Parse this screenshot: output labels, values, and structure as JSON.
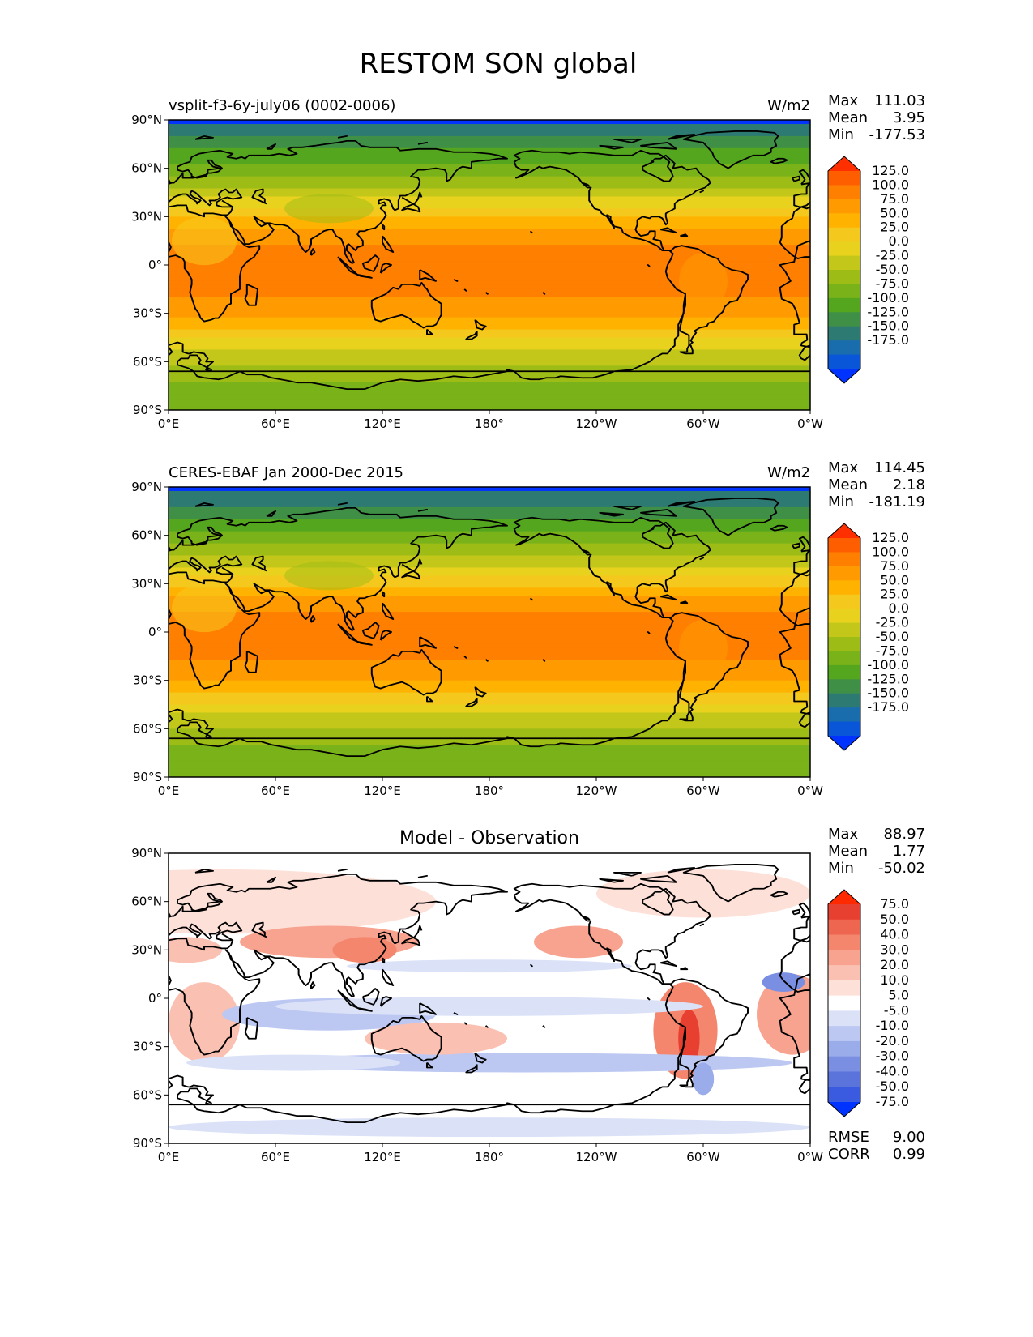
{
  "figure_title": "RESTOM SON global",
  "x_tick_labels": [
    "0°E",
    "60°E",
    "120°E",
    "180°",
    "120°W",
    "60°W",
    "0°W"
  ],
  "y_tick_labels": [
    "90°N",
    "60°N",
    "30°N",
    "0°",
    "30°S",
    "60°S",
    "90°S"
  ],
  "chart_data": [
    {
      "type": "heatmap",
      "title": "vsplit-f3-6y-july06 (0002-0006)",
      "units": "W/m2",
      "stats": {
        "max_label": "Max",
        "max": "111.03",
        "mean_label": "Mean",
        "mean": "3.95",
        "min_label": "Min",
        "min": "-177.53"
      },
      "colorbar_levels": [
        "125.0",
        "100.0",
        "75.0",
        "50.0",
        "25.0",
        "0.0",
        "-25.0",
        "-50.0",
        "-75.0",
        "-100.0",
        "-125.0",
        "-150.0",
        "-175.0"
      ],
      "zonal_profile": [
        [
          90,
          -180
        ],
        [
          85,
          -165
        ],
        [
          80,
          -150
        ],
        [
          75,
          -135
        ],
        [
          70,
          -120
        ],
        [
          65,
          -105
        ],
        [
          60,
          -90
        ],
        [
          55,
          -75
        ],
        [
          50,
          -55
        ],
        [
          45,
          -38
        ],
        [
          40,
          -20
        ],
        [
          35,
          0
        ],
        [
          30,
          20
        ],
        [
          25,
          40
        ],
        [
          20,
          55
        ],
        [
          15,
          70
        ],
        [
          10,
          80
        ],
        [
          5,
          85
        ],
        [
          0,
          85
        ],
        [
          -5,
          88
        ],
        [
          -10,
          90
        ],
        [
          -15,
          85
        ],
        [
          -20,
          75
        ],
        [
          -25,
          65
        ],
        [
          -30,
          55
        ],
        [
          -35,
          40
        ],
        [
          -40,
          20
        ],
        [
          -45,
          0
        ],
        [
          -50,
          -15
        ],
        [
          -55,
          -30
        ],
        [
          -60,
          -45
        ],
        [
          -65,
          -60
        ],
        [
          -70,
          -70
        ],
        [
          -75,
          -78
        ],
        [
          -80,
          -80
        ],
        [
          -85,
          -80
        ],
        [
          -90,
          -80
        ]
      ]
    },
    {
      "type": "heatmap",
      "title": "CERES-EBAF Jan 2000-Dec 2015",
      "units": "W/m2",
      "stats": {
        "max_label": "Max",
        "max": "114.45",
        "mean_label": "Mean",
        "mean": "2.18",
        "min_label": "Min",
        "min": "-181.19"
      },
      "colorbar_levels": [
        "125.0",
        "100.0",
        "75.0",
        "50.0",
        "25.0",
        "0.0",
        "-25.0",
        "-50.0",
        "-75.0",
        "-100.0",
        "-125.0",
        "-150.0",
        "-175.0"
      ],
      "zonal_profile": [
        [
          90,
          -182
        ],
        [
          85,
          -170
        ],
        [
          80,
          -155
        ],
        [
          75,
          -140
        ],
        [
          70,
          -125
        ],
        [
          65,
          -110
        ],
        [
          60,
          -92
        ],
        [
          55,
          -78
        ],
        [
          50,
          -58
        ],
        [
          45,
          -40
        ],
        [
          40,
          -22
        ],
        [
          35,
          -2
        ],
        [
          30,
          18
        ],
        [
          25,
          38
        ],
        [
          20,
          55
        ],
        [
          15,
          72
        ],
        [
          10,
          82
        ],
        [
          5,
          86
        ],
        [
          0,
          86
        ],
        [
          -5,
          88
        ],
        [
          -10,
          88
        ],
        [
          -15,
          82
        ],
        [
          -20,
          72
        ],
        [
          -25,
          62
        ],
        [
          -30,
          50
        ],
        [
          -35,
          35
        ],
        [
          -40,
          15
        ],
        [
          -45,
          -5
        ],
        [
          -50,
          -22
        ],
        [
          -55,
          -38
        ],
        [
          -60,
          -52
        ],
        [
          -65,
          -68
        ],
        [
          -70,
          -76
        ],
        [
          -75,
          -80
        ],
        [
          -80,
          -80
        ],
        [
          -85,
          -82
        ],
        [
          -90,
          -82
        ]
      ]
    },
    {
      "type": "heatmap",
      "title": "Model - Observation",
      "units": "",
      "stats": {
        "max_label": "Max",
        "max": "88.97",
        "mean_label": "Mean",
        "mean": "1.77",
        "min_label": "Min",
        "min": "-50.02"
      },
      "colorbar_levels": [
        "75.0",
        "50.0",
        "40.0",
        "30.0",
        "20.0",
        "10.0",
        "5.0",
        "-5.0",
        "-10.0",
        "-20.0",
        "-30.0",
        "-40.0",
        "-50.0",
        "-75.0"
      ],
      "rmse_label": "RMSE",
      "rmse": "9.00",
      "corr_label": "CORR",
      "corr": "0.99"
    }
  ],
  "colors": {
    "abs_scale": [
      "#ff2f00",
      "#ff5e00",
      "#ff7f00",
      "#ff9a00",
      "#ffb300",
      "#f5c81e",
      "#e8d21e",
      "#c3c71a",
      "#9ebc16",
      "#79b319",
      "#55a61f",
      "#3f8f47",
      "#2d7a73",
      "#1a6dad",
      "#0a56d8",
      "#0033ff"
    ],
    "diff_scale": [
      "#ff2a00",
      "#e84030",
      "#ee6650",
      "#f4866e",
      "#f7a38f",
      "#fac0b2",
      "#fde0d8",
      "#ffffff",
      "#dbe2f8",
      "#bcc8f2",
      "#9aacea",
      "#7a8fe2",
      "#5a74dc",
      "#3a5ae0",
      "#0033ff"
    ]
  }
}
